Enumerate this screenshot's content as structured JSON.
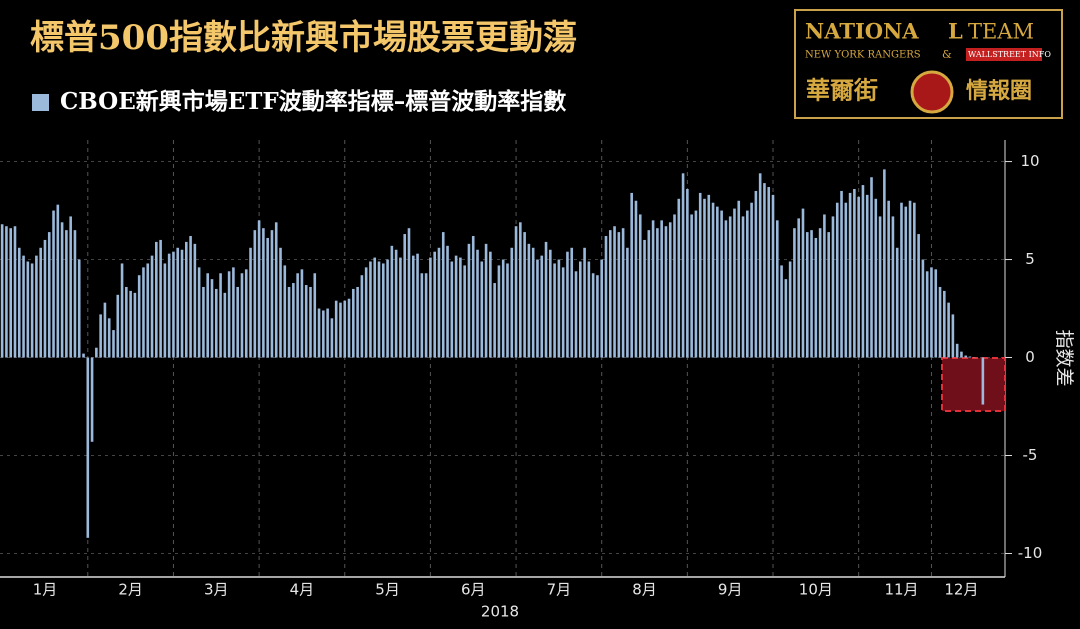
{
  "chart_data": {
    "type": "bar",
    "title": "標普500指數比新興市場股票更動蕩",
    "legend_label": "CBOE新興市場ETF波動率指標–標普波動率指數",
    "y_axis_label": "指数差",
    "x_axis_label": "2018",
    "color": "#9bb9da",
    "grid": true,
    "ylim": [
      -11.2,
      11.1
    ],
    "yticks": [
      10,
      5,
      0,
      -5,
      -10
    ],
    "categories": [
      null,
      null,
      null,
      null,
      null,
      null,
      null,
      null,
      null,
      null,
      "1月",
      null,
      null,
      null,
      null,
      null,
      null,
      null,
      null,
      null,
      null,
      null,
      null,
      null,
      null,
      null,
      null,
      null,
      null,
      null,
      "2月",
      null,
      null,
      null,
      null,
      null,
      null,
      null,
      null,
      null,
      null,
      null,
      null,
      null,
      null,
      null,
      null,
      null,
      null,
      null,
      "3月",
      null,
      null,
      null,
      null,
      null,
      null,
      null,
      null,
      null,
      null,
      null,
      null,
      null,
      null,
      null,
      null,
      null,
      null,
      null,
      "4月",
      null,
      null,
      null,
      null,
      null,
      null,
      null,
      null,
      null,
      null,
      null,
      null,
      null,
      null,
      null,
      null,
      null,
      null,
      null,
      "5月",
      null,
      null,
      null,
      null,
      null,
      null,
      null,
      null,
      null,
      null,
      null,
      null,
      null,
      null,
      null,
      null,
      null,
      null,
      null,
      "6月",
      null,
      null,
      null,
      null,
      null,
      null,
      null,
      null,
      null,
      null,
      null,
      null,
      null,
      null,
      null,
      null,
      null,
      null,
      null,
      "7月",
      null,
      null,
      null,
      null,
      null,
      null,
      null,
      null,
      null,
      null,
      null,
      null,
      null,
      null,
      null,
      null,
      null,
      null,
      null,
      "8月",
      null,
      null,
      null,
      null,
      null,
      null,
      null,
      null,
      null,
      null,
      null,
      null,
      null,
      null,
      null,
      null,
      null,
      null,
      null,
      "9月",
      null,
      null,
      null,
      null,
      null,
      null,
      null,
      null,
      null,
      null,
      null,
      null,
      null,
      null,
      null,
      null,
      null,
      null,
      null,
      "10月",
      null,
      null,
      null,
      null,
      null,
      null,
      null,
      null,
      null,
      null,
      null,
      null,
      null,
      null,
      null,
      null,
      null,
      null,
      null,
      "11月",
      null,
      null,
      null,
      null,
      null,
      null,
      null,
      null,
      null,
      null,
      null,
      null,
      null,
      "12月",
      null,
      null,
      null,
      null,
      null
    ],
    "values": [
      6.8,
      6.7,
      6.6,
      6.7,
      5.6,
      5.2,
      4.9,
      4.8,
      5.2,
      5.6,
      6.0,
      6.4,
      7.5,
      7.8,
      6.9,
      6.5,
      7.2,
      6.5,
      5.0,
      0.2,
      -9.2,
      -4.3,
      0.5,
      2.2,
      2.8,
      2.0,
      1.4,
      3.2,
      4.8,
      3.6,
      3.4,
      3.3,
      4.2,
      4.6,
      4.8,
      5.2,
      5.9,
      6.0,
      4.8,
      5.3,
      5.4,
      5.6,
      5.5,
      5.9,
      6.2,
      5.8,
      4.6,
      3.6,
      4.3,
      4.0,
      3.5,
      4.3,
      3.3,
      4.4,
      4.6,
      3.6,
      4.3,
      4.5,
      5.6,
      6.5,
      7.0,
      6.6,
      6.1,
      6.5,
      6.9,
      5.6,
      4.7,
      3.6,
      3.8,
      4.3,
      4.5,
      3.7,
      3.6,
      4.3,
      2.5,
      2.4,
      2.5,
      2.0,
      2.9,
      2.8,
      2.9,
      3.0,
      3.5,
      3.6,
      4.2,
      4.6,
      4.9,
      5.1,
      4.9,
      4.8,
      5.0,
      5.7,
      5.5,
      5.1,
      6.3,
      6.6,
      5.2,
      5.3,
      4.3,
      4.3,
      5.1,
      5.4,
      5.6,
      6.4,
      5.7,
      4.9,
      5.2,
      5.1,
      4.7,
      5.8,
      6.2,
      5.5,
      4.9,
      5.8,
      5.4,
      3.8,
      4.7,
      5.0,
      4.8,
      5.6,
      6.7,
      6.9,
      6.4,
      5.8,
      5.6,
      5.0,
      5.2,
      5.9,
      5.5,
      4.8,
      5.0,
      4.6,
      5.4,
      5.6,
      4.4,
      4.9,
      5.6,
      4.9,
      4.3,
      4.2,
      5.0,
      6.2,
      6.5,
      6.7,
      6.4,
      6.6,
      5.6,
      8.4,
      8.0,
      7.3,
      6.0,
      6.5,
      7.0,
      6.6,
      7.0,
      6.7,
      6.9,
      7.3,
      8.1,
      9.4,
      8.6,
      7.3,
      7.5,
      8.4,
      8.1,
      8.3,
      7.9,
      7.7,
      7.5,
      7.0,
      7.2,
      7.6,
      8.0,
      7.2,
      7.5,
      7.9,
      8.5,
      9.4,
      8.9,
      8.7,
      8.3,
      7.0,
      4.7,
      4.0,
      4.9,
      6.6,
      7.1,
      7.6,
      6.4,
      6.5,
      6.1,
      6.6,
      7.3,
      6.4,
      7.2,
      7.9,
      8.5,
      7.9,
      8.4,
      8.6,
      8.2,
      8.8,
      8.3,
      9.2,
      8.1,
      7.2,
      9.6,
      8.0,
      7.2,
      5.6,
      7.9,
      7.7,
      8.0,
      7.9,
      6.3,
      5.0,
      4.4,
      4.6,
      4.5,
      3.6,
      3.4,
      2.8,
      2.2,
      0.7,
      0.3,
      0.1,
      0.05,
      0.02,
      0.0,
      -2.4
    ]
  },
  "logo": {
    "line1a": "NATIONA",
    "line1b": "L",
    "line1c": "TEAM",
    "line2a": "NEW YORK RANGERS",
    "line2b": "&",
    "line2c": "WALLSTREET INFO",
    "line3a": "華爾街",
    "line3b": "情報圈"
  }
}
